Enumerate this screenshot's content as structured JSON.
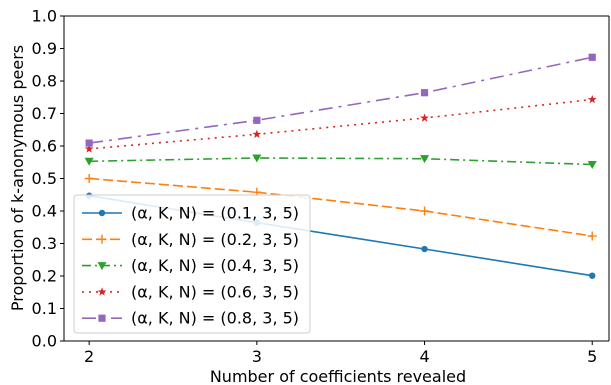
{
  "chart_data": {
    "type": "line",
    "xlabel": "Number of coefficients revealed",
    "ylabel": "Proportion of k-anonymous peers",
    "x": [
      2,
      3,
      4,
      5
    ],
    "xlim": [
      1.85,
      5.1
    ],
    "ylim": [
      0.0,
      1.0
    ],
    "xticks": [
      "2",
      "3",
      "4",
      "5"
    ],
    "yticks": [
      "0.0",
      "0.1",
      "0.2",
      "0.3",
      "0.4",
      "0.5",
      "0.6",
      "0.7",
      "0.8",
      "0.9",
      "1.0"
    ],
    "grid": false,
    "legend_position": "lower-left",
    "series": [
      {
        "name": "(α, K, N) = (0.1, 3, 5)",
        "values": [
          0.447,
          0.364,
          0.283,
          0.201
        ],
        "color": "#1f77b4",
        "linestyle": "solid",
        "marker": "circle"
      },
      {
        "name": "(α, K, N) = (0.2, 3, 5)",
        "values": [
          0.5,
          0.458,
          0.4,
          0.323
        ],
        "color": "#ff7f0e",
        "linestyle": "dashed",
        "marker": "plus"
      },
      {
        "name": "(α, K, N) = (0.4, 3, 5)",
        "values": [
          0.553,
          0.563,
          0.561,
          0.543
        ],
        "color": "#2ca02c",
        "linestyle": "dashdot",
        "marker": "triangle-down"
      },
      {
        "name": "(α, K, N) = (0.6, 3, 5)",
        "values": [
          0.591,
          0.636,
          0.686,
          0.743
        ],
        "color": "#d62728",
        "linestyle": "dotted",
        "marker": "star"
      },
      {
        "name": "(α, K, N) = (0.8, 3, 5)",
        "values": [
          0.609,
          0.679,
          0.764,
          0.873
        ],
        "color": "#9467bd",
        "linestyle": "loosedashdot",
        "marker": "square"
      }
    ]
  }
}
